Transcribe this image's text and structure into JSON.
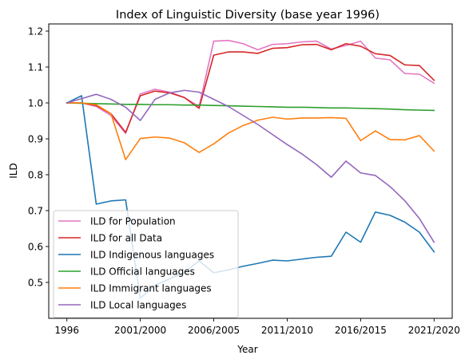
{
  "chart_data": {
    "type": "line",
    "title": "Index of Linguistic Diversity (base year 1996)",
    "xlabel": "Year",
    "ylabel": "ILD",
    "xlim": [
      0,
      25
    ],
    "ylim": [
      0.4,
      1.22
    ],
    "x_ticks": [
      {
        "x": 0,
        "label": "1996"
      },
      {
        "x": 5,
        "label": "2001/2000"
      },
      {
        "x": 10,
        "label": "2006/2005"
      },
      {
        "x": 15,
        "label": "2011/2010"
      },
      {
        "x": 20,
        "label": "2016/2015"
      },
      {
        "x": 25,
        "label": "2021/2020"
      }
    ],
    "y_ticks": [
      0.5,
      0.6,
      0.7,
      0.8,
      0.9,
      1.0,
      1.1,
      1.2
    ],
    "y_tick_labels": [
      "0.5",
      "0.6",
      "0.7",
      "0.8",
      "0.9",
      "1.0",
      "1.1",
      "1.2"
    ],
    "grid": false,
    "legend_position": "lower-left",
    "x": [
      0,
      1,
      2,
      3,
      4,
      5,
      6,
      7,
      8,
      9,
      10,
      11,
      12,
      13,
      14,
      15,
      16,
      17,
      18,
      19,
      20,
      21,
      22,
      23,
      24,
      25
    ],
    "series": [
      {
        "name": "ILD for Population",
        "color": "#e377c2",
        "values": [
          1.0,
          1.0,
          0.99,
          0.965,
          0.915,
          1.025,
          1.038,
          1.03,
          1.015,
          0.99,
          1.172,
          1.174,
          1.165,
          1.148,
          1.163,
          1.165,
          1.17,
          1.172,
          1.15,
          1.16,
          1.172,
          1.125,
          1.12,
          1.082,
          1.08,
          1.055
        ]
      },
      {
        "name": "ILD for all Data",
        "color": "#d62728",
        "values": [
          1.0,
          1.0,
          0.993,
          0.97,
          0.918,
          1.02,
          1.033,
          1.028,
          1.015,
          0.985,
          1.133,
          1.142,
          1.142,
          1.138,
          1.152,
          1.154,
          1.162,
          1.163,
          1.148,
          1.165,
          1.158,
          1.137,
          1.132,
          1.106,
          1.104,
          1.063
        ]
      },
      {
        "name": "ILD Indigenous languages",
        "color": "#1f77b4",
        "values": [
          1.0,
          1.02,
          0.718,
          0.727,
          0.73,
          0.456,
          0.492,
          0.51,
          0.528,
          0.56,
          0.527,
          0.535,
          0.545,
          0.553,
          0.562,
          0.56,
          0.565,
          0.57,
          0.573,
          0.64,
          0.612,
          0.696,
          0.687,
          0.668,
          0.64,
          0.585
        ]
      },
      {
        "name": "ILD Official languages",
        "color": "#2ca02c",
        "values": [
          1.0,
          0.999,
          0.998,
          0.997,
          0.996,
          0.996,
          0.995,
          0.995,
          0.994,
          0.994,
          0.993,
          0.992,
          0.991,
          0.99,
          0.989,
          0.988,
          0.988,
          0.987,
          0.986,
          0.986,
          0.985,
          0.984,
          0.983,
          0.981,
          0.98,
          0.979
        ]
      },
      {
        "name": "ILD Immigrant languages",
        "color": "#ff7f0e",
        "values": [
          1.0,
          1.0,
          0.995,
          0.97,
          0.842,
          0.901,
          0.905,
          0.902,
          0.889,
          0.862,
          0.886,
          0.916,
          0.937,
          0.952,
          0.96,
          0.955,
          0.958,
          0.958,
          0.959,
          0.957,
          0.895,
          0.922,
          0.898,
          0.897,
          0.909,
          0.866
        ]
      },
      {
        "name": "ILD Local languages",
        "color": "#9467bd",
        "values": [
          1.0,
          1.012,
          1.024,
          1.01,
          0.988,
          0.951,
          1.01,
          1.028,
          1.035,
          1.03,
          1.01,
          0.99,
          0.965,
          0.94,
          0.912,
          0.884,
          0.858,
          0.828,
          0.793,
          0.838,
          0.805,
          0.798,
          0.767,
          0.728,
          0.678,
          0.612
        ]
      }
    ]
  }
}
